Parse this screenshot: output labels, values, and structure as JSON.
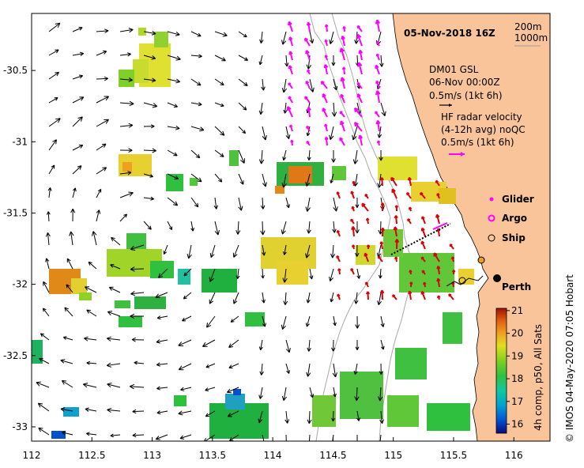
{
  "map": {
    "date_title": "05-Nov-2018 16Z",
    "contour_labels": [
      "200m",
      "1000m"
    ],
    "mooring": {
      "name": "DM01 GSL",
      "time": "06-Nov 00:00Z",
      "scale": "0.5m/s (1kt 6h)"
    },
    "hf_radar": {
      "title": "HF radar velocity",
      "subtitle": "(4-12h avg) noQC",
      "scale": "0.5m/s (1kt 6h)"
    },
    "legend": {
      "glider": "Glider",
      "argo": "Argo",
      "ship": "Ship"
    },
    "city": "Perth",
    "colorbar": {
      "label": "4h comp, p50, All Sats",
      "ticks": [
        "21",
        "20",
        "19",
        "18",
        "17",
        "16"
      ],
      "min": 15.6,
      "max": 21.1
    },
    "credit": "© IMOS 04-May-2020 07:05 Hobart",
    "x_ticks": [
      "112",
      "112.5",
      "113",
      "113.5",
      "114",
      "114.5",
      "115",
      "115.5",
      "116"
    ],
    "y_ticks": [
      "-30.5",
      "-31",
      "-31.5",
      "-32",
      "-32.5",
      "-33"
    ],
    "x_range": [
      112,
      116.3
    ],
    "y_range": [
      -33.1,
      -30.1
    ],
    "colors": {
      "land": "#f9c49a",
      "ocean": "#ffffff",
      "hf_radar_arrows": "#ff00ff",
      "coastal_radar_arrows": "#dd0000",
      "glider": "#ff00ff",
      "bathymetry": "#a0a0a0"
    }
  }
}
